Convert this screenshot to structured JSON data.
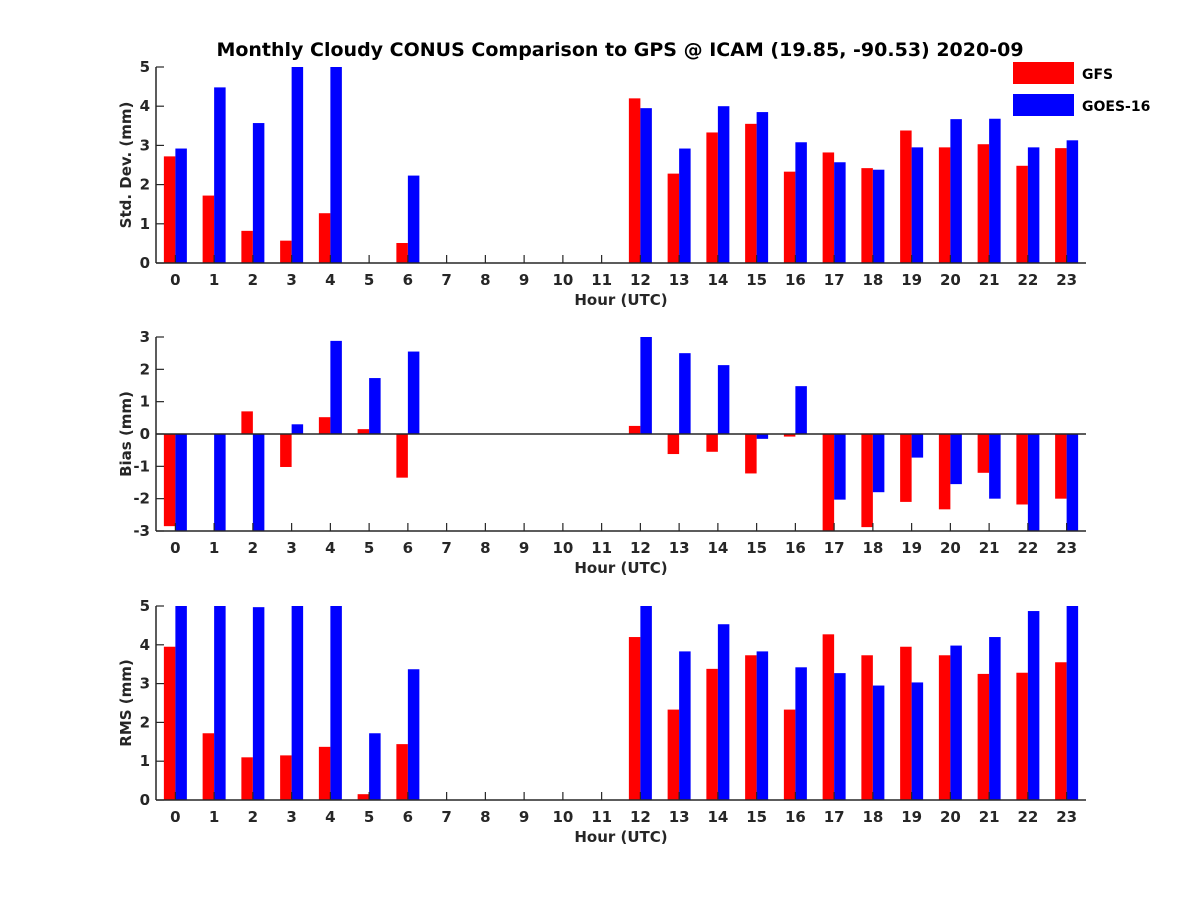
{
  "chart_data": {
    "title": "Monthly Cloudy CONUS Comparison to GPS @ ICAM (19.85, -90.53) 2020-09",
    "legend": [
      {
        "name": "GFS",
        "color": "#ff0000"
      },
      {
        "name": "GOES-16",
        "color": "#0000ff"
      }
    ],
    "legend_position": "top-right",
    "categories": [
      "0",
      "1",
      "2",
      "3",
      "4",
      "5",
      "6",
      "7",
      "8",
      "9",
      "10",
      "11",
      "12",
      "13",
      "14",
      "15",
      "16",
      "17",
      "18",
      "19",
      "20",
      "21",
      "22",
      "23"
    ],
    "panels": [
      {
        "type": "bar",
        "ylabel": "Std. Dev. (mm)",
        "xlabel": "Hour (UTC)",
        "ylim": [
          0,
          5
        ],
        "yticks": [
          0,
          1,
          2,
          3,
          4,
          5
        ],
        "series": [
          {
            "name": "GFS",
            "values": [
              2.72,
              1.72,
              0.82,
              0.57,
              1.27,
              0,
              0.51,
              0,
              0,
              0,
              0,
              0,
              4.2,
              2.28,
              3.33,
              3.55,
              2.33,
              2.82,
              2.42,
              3.38,
              2.95,
              3.03,
              2.48,
              2.93
            ]
          },
          {
            "name": "GOES-16",
            "values": [
              2.92,
              4.48,
              3.57,
              5.0,
              5.0,
              0,
              2.23,
              0,
              0,
              0,
              0,
              0,
              3.95,
              2.92,
              4.0,
              3.85,
              3.08,
              2.57,
              2.38,
              2.95,
              3.67,
              3.68,
              2.95,
              3.13
            ]
          }
        ]
      },
      {
        "type": "bar",
        "ylabel": "Bias (mm)",
        "xlabel": "Hour (UTC)",
        "ylim": [
          -3,
          3
        ],
        "yticks": [
          -3,
          -2,
          -1,
          0,
          1,
          2,
          3
        ],
        "series": [
          {
            "name": "GFS",
            "values": [
              -2.85,
              0,
              0.7,
              -1.02,
              0.52,
              0.15,
              -1.35,
              0,
              0,
              0,
              0,
              0,
              0.25,
              -0.62,
              -0.55,
              -1.22,
              -0.08,
              -3.0,
              -2.88,
              -2.1,
              -2.33,
              -1.2,
              -2.18,
              -2.0
            ]
          },
          {
            "name": "GOES-16",
            "values": [
              -3.0,
              -3.0,
              -3.0,
              0.3,
              2.88,
              1.73,
              2.55,
              0,
              0,
              0,
              0,
              0,
              3.0,
              2.5,
              2.13,
              -0.15,
              1.48,
              -2.03,
              -1.8,
              -0.73,
              -1.55,
              -2.0,
              -3.0,
              -3.0
            ]
          }
        ]
      },
      {
        "type": "bar",
        "ylabel": "RMS (mm)",
        "xlabel": "Hour (UTC)",
        "ylim": [
          0,
          5
        ],
        "yticks": [
          0,
          1,
          2,
          3,
          4,
          5
        ],
        "series": [
          {
            "name": "GFS",
            "values": [
              3.95,
              1.72,
              1.1,
              1.15,
              1.37,
              0.15,
              1.44,
              0,
              0,
              0,
              0,
              0,
              4.2,
              2.33,
              3.38,
              3.73,
              2.33,
              4.27,
              3.73,
              3.95,
              3.73,
              3.25,
              3.28,
              3.55
            ]
          },
          {
            "name": "GOES-16",
            "values": [
              5.0,
              5.0,
              4.97,
              5.0,
              5.0,
              1.72,
              3.37,
              0,
              0,
              0,
              0,
              0,
              5.0,
              3.83,
              4.53,
              3.83,
              3.42,
              3.27,
              2.95,
              3.03,
              3.98,
              4.2,
              4.87,
              5.0
            ]
          }
        ]
      }
    ]
  }
}
